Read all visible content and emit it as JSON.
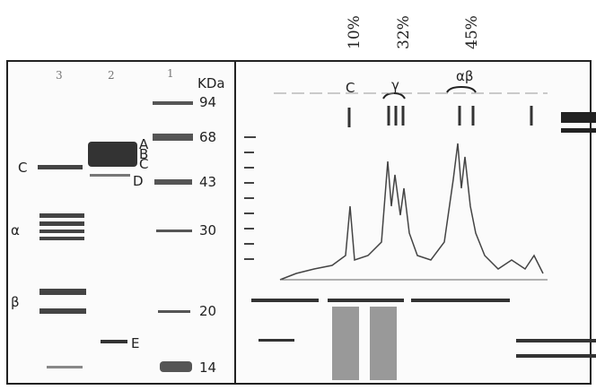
{
  "percent_labels": [
    "10%",
    "32%",
    "45%"
  ],
  "gel": {
    "lanes": [
      "3",
      "2",
      "1"
    ],
    "unit": "KDa",
    "markers": [
      "94",
      "68",
      "43",
      "30",
      "20",
      "14"
    ],
    "left_labels": [
      "C",
      "α",
      "β"
    ],
    "lane2_labels": [
      "A",
      "B",
      "C",
      "D",
      "E"
    ]
  },
  "chromatogram": {
    "peak_labels": [
      "C",
      "γ",
      "αβ"
    ]
  }
}
